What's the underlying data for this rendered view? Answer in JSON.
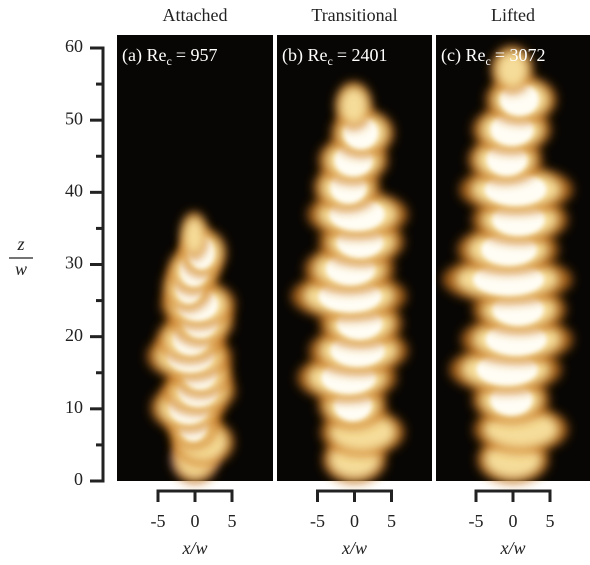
{
  "figure": {
    "panels": [
      {
        "header": "Attached",
        "label": "(a) Re",
        "subscript": "c",
        "value": "= 957"
      },
      {
        "header": "Transitional",
        "label": "(b) Re",
        "subscript": "c",
        "value": "= 2401"
      },
      {
        "header": "Lifted",
        "label": "(c) Re",
        "subscript": "c",
        "value": "= 3072"
      }
    ],
    "y_axis": {
      "label_top": "z",
      "label_bottom": "w",
      "ticks": [
        0,
        10,
        20,
        30,
        40,
        50,
        60
      ]
    },
    "x_axis": {
      "label": "x/w",
      "ticks": [
        -5,
        0,
        5
      ]
    }
  }
}
